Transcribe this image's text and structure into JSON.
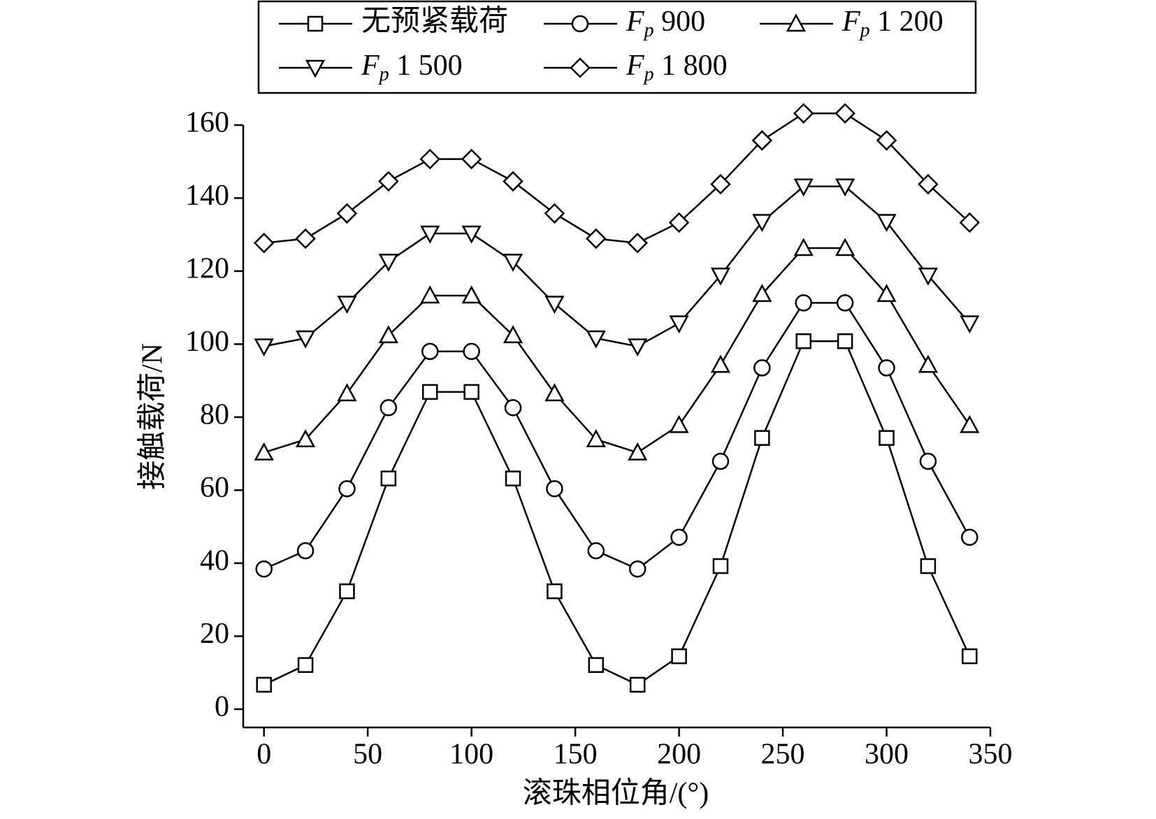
{
  "chart_data": {
    "type": "line",
    "x_label": "滚珠相位角/(°)",
    "y_label": "接触载荷/N",
    "x": [
      0,
      20,
      40,
      60,
      80,
      100,
      120,
      140,
      160,
      180,
      200,
      220,
      240,
      260,
      280,
      300,
      320,
      340
    ],
    "series": [
      {
        "name": "无预紧载荷",
        "color": "#000000",
        "marker": "square",
        "values": [
          6.7,
          12.1,
          32.3,
          63.2,
          86.9,
          86.9,
          63.2,
          32.3,
          12.1,
          6.7,
          14.5,
          39.2,
          74.3,
          100.8,
          100.8,
          74.3,
          39.2,
          14.5
        ]
      },
      {
        "name": "Fp 900",
        "color": "#000000",
        "marker": "circle",
        "values": [
          38.4,
          43.4,
          60.4,
          82.6,
          98,
          98,
          82.6,
          60.4,
          43.4,
          38.4,
          47.1,
          67.9,
          93.5,
          111.3,
          111.3,
          93.5,
          67.9,
          47.1
        ]
      },
      {
        "name": "Fp 1 200",
        "color": "#000000",
        "marker": "triangle-up",
        "values": [
          70.3,
          73.9,
          86.5,
          102.4,
          113.3,
          113.3,
          102.4,
          86.5,
          73.9,
          70.3,
          77.8,
          94.3,
          113.7,
          126.3,
          126.3,
          113.7,
          94.3,
          77.8
        ]
      },
      {
        "name": "Fp 1 500",
        "color": "#000000",
        "marker": "triangle-down",
        "values": [
          99.4,
          101.6,
          111.1,
          122.6,
          130.3,
          130.3,
          122.6,
          111.1,
          101.6,
          99.4,
          105.7,
          118.8,
          133.5,
          143.2,
          143.2,
          133.5,
          118.8,
          105.7
        ]
      },
      {
        "name": "Fp 1 800",
        "color": "#000000",
        "marker": "diamond",
        "values": [
          127.7,
          128.9,
          135.8,
          144.6,
          150.7,
          150.7,
          144.6,
          135.8,
          128.9,
          127.7,
          133.3,
          143.8,
          155.8,
          163.2,
          163.2,
          155.8,
          143.8,
          133.3
        ]
      }
    ],
    "xlim": [
      -10,
      350
    ],
    "xticks": [
      0,
      50,
      100,
      150,
      200,
      250,
      300,
      350
    ],
    "ylim": [
      -5,
      160
    ],
    "yticks": [
      0,
      20,
      40,
      60,
      80,
      100,
      120,
      140,
      160
    ],
    "grid": false,
    "legend": "top"
  }
}
